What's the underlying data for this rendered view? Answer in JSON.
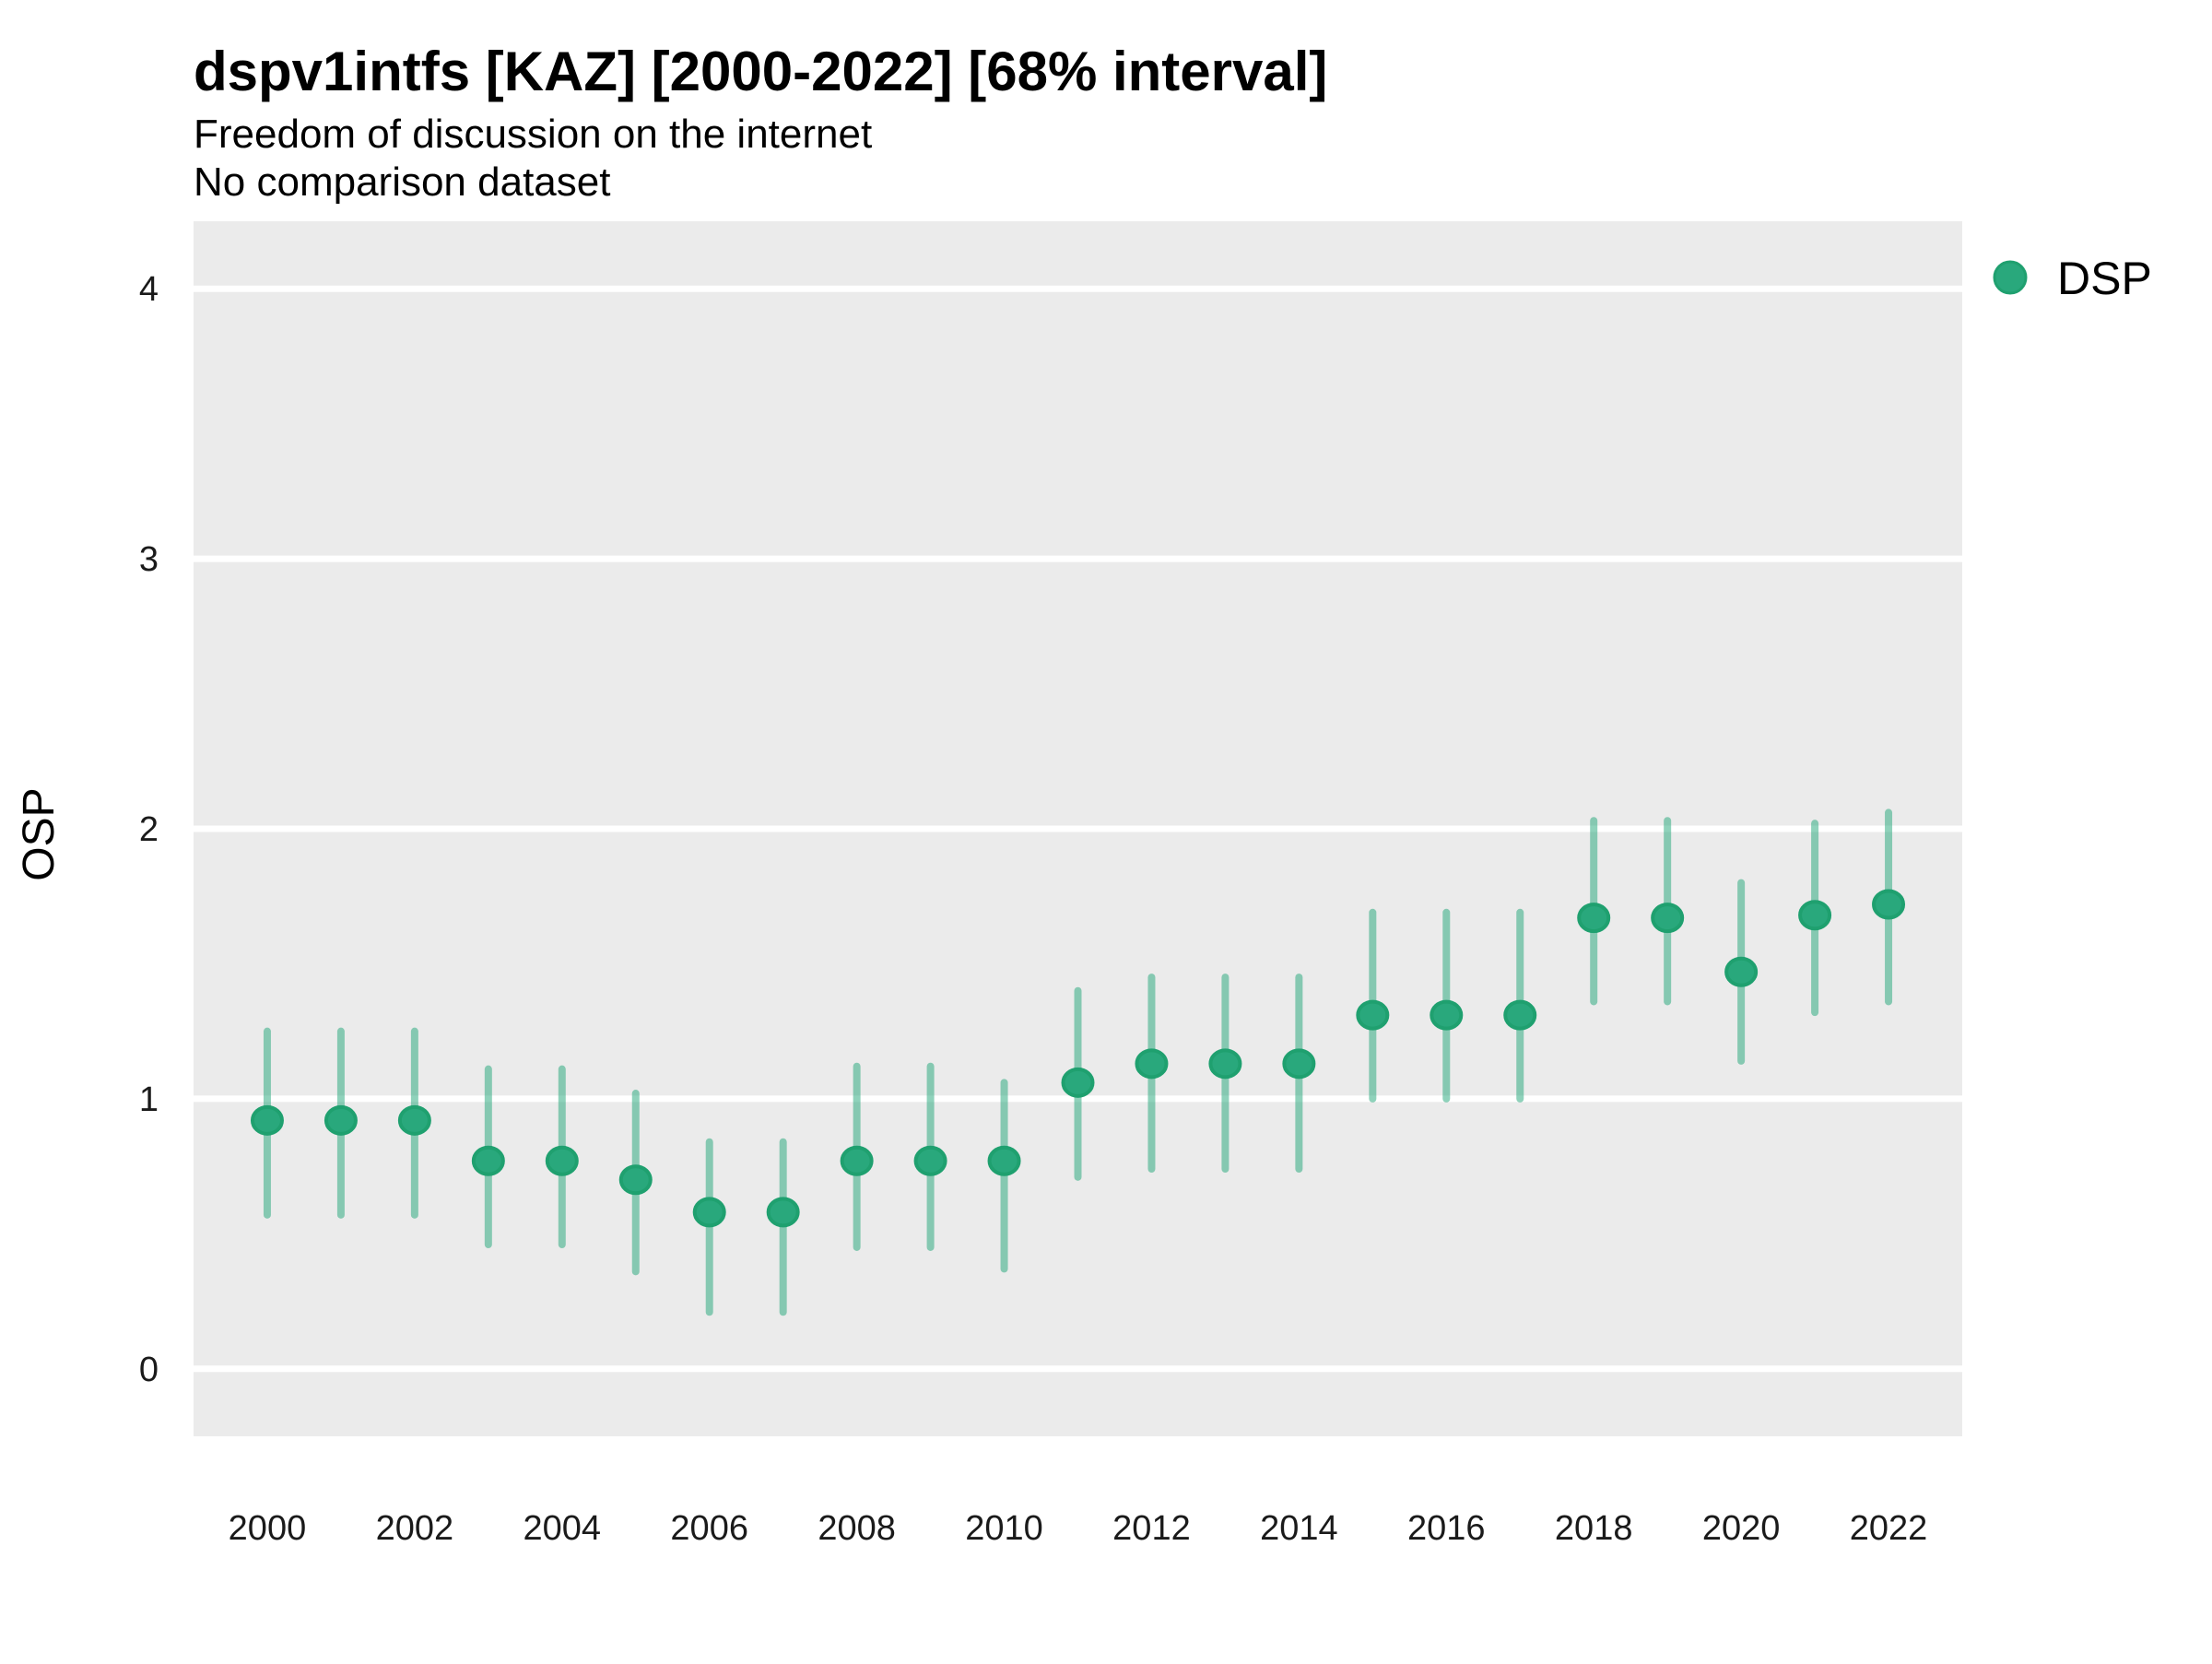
{
  "colors": {
    "point": "#29A87C",
    "point_stroke": "#1FA06F",
    "interval_line": "rgba(41,168,124,0.52)",
    "panel_bg": "#EBEBEB",
    "gridline": "#FFFFFF"
  },
  "chart_data": {
    "type": "pointrange",
    "title": "dspv1intfs [KAZ] [2000-2022] [68% interval]",
    "subtitle": "Freedom of discussion on the internet",
    "subtitle2": "No comparison dataset",
    "xlabel": "",
    "ylabel": "OSP",
    "grid": "major-y-only",
    "xlim": [
      1999,
      2023
    ],
    "ylim": [
      -0.25,
      4.25
    ],
    "x_ticks": [
      2000,
      2002,
      2004,
      2006,
      2008,
      2010,
      2012,
      2014,
      2016,
      2018,
      2020,
      2022
    ],
    "y_ticks": [
      0,
      1,
      2,
      3,
      4
    ],
    "legend": {
      "position": "right",
      "entries": [
        {
          "label": "DSP",
          "color": "#29A87C"
        }
      ]
    },
    "series": [
      {
        "name": "DSP",
        "points": [
          {
            "year": 2000,
            "mid": 0.92,
            "lo": 0.57,
            "hi": 1.25
          },
          {
            "year": 2001,
            "mid": 0.92,
            "lo": 0.57,
            "hi": 1.25
          },
          {
            "year": 2002,
            "mid": 0.92,
            "lo": 0.57,
            "hi": 1.25
          },
          {
            "year": 2003,
            "mid": 0.77,
            "lo": 0.46,
            "hi": 1.11
          },
          {
            "year": 2004,
            "mid": 0.77,
            "lo": 0.46,
            "hi": 1.11
          },
          {
            "year": 2005,
            "mid": 0.7,
            "lo": 0.36,
            "hi": 1.02
          },
          {
            "year": 2006,
            "mid": 0.58,
            "lo": 0.21,
            "hi": 0.84
          },
          {
            "year": 2007,
            "mid": 0.58,
            "lo": 0.21,
            "hi": 0.84
          },
          {
            "year": 2008,
            "mid": 0.77,
            "lo": 0.45,
            "hi": 1.12
          },
          {
            "year": 2009,
            "mid": 0.77,
            "lo": 0.45,
            "hi": 1.12
          },
          {
            "year": 2010,
            "mid": 0.77,
            "lo": 0.37,
            "hi": 1.06
          },
          {
            "year": 2011,
            "mid": 1.06,
            "lo": 0.71,
            "hi": 1.4
          },
          {
            "year": 2012,
            "mid": 1.13,
            "lo": 0.74,
            "hi": 1.45
          },
          {
            "year": 2013,
            "mid": 1.13,
            "lo": 0.74,
            "hi": 1.45
          },
          {
            "year": 2014,
            "mid": 1.13,
            "lo": 0.74,
            "hi": 1.45
          },
          {
            "year": 2015,
            "mid": 1.31,
            "lo": 1.0,
            "hi": 1.69
          },
          {
            "year": 2016,
            "mid": 1.31,
            "lo": 1.0,
            "hi": 1.69
          },
          {
            "year": 2017,
            "mid": 1.31,
            "lo": 1.0,
            "hi": 1.69
          },
          {
            "year": 2018,
            "mid": 1.67,
            "lo": 1.36,
            "hi": 2.03
          },
          {
            "year": 2019,
            "mid": 1.67,
            "lo": 1.36,
            "hi": 2.03
          },
          {
            "year": 2020,
            "mid": 1.47,
            "lo": 1.14,
            "hi": 1.8
          },
          {
            "year": 2021,
            "mid": 1.68,
            "lo": 1.32,
            "hi": 2.02
          },
          {
            "year": 2022,
            "mid": 1.72,
            "lo": 1.36,
            "hi": 2.06
          }
        ]
      }
    ]
  }
}
